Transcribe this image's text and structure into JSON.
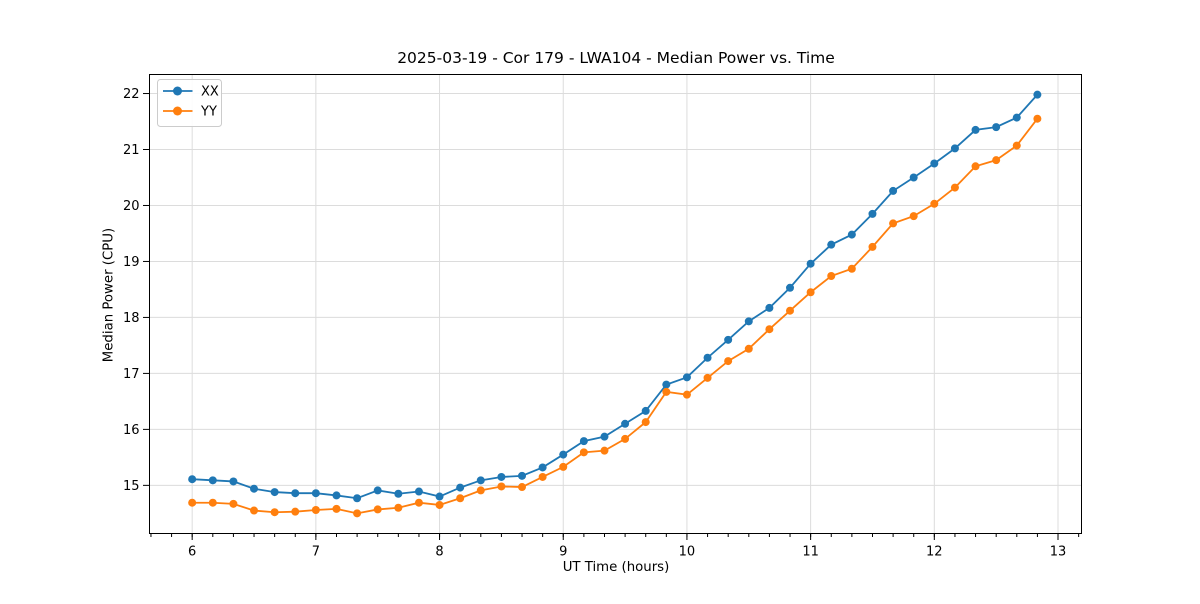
{
  "figure": {
    "background": "#ffffff"
  },
  "chart_data": {
    "type": "line",
    "title": "2025-03-19 - Cor 179 - LWA104 - Median Power vs. Time",
    "xlabel": "UT Time (hours)",
    "ylabel": "Median Power (CPU)",
    "x": [
      6.0,
      6.1667,
      6.3333,
      6.5,
      6.6667,
      6.8333,
      7.0,
      7.1667,
      7.3333,
      7.5,
      7.6667,
      7.8333,
      8.0,
      8.1667,
      8.3333,
      8.5,
      8.6667,
      8.8333,
      9.0,
      9.1667,
      9.3333,
      9.5,
      9.6667,
      9.8333,
      10.0,
      10.1667,
      10.3333,
      10.5,
      10.6667,
      10.8333,
      11.0,
      11.1667,
      11.3333,
      11.5,
      11.6667,
      11.8333,
      12.0,
      12.1667,
      12.3333,
      12.5,
      12.6667,
      12.8333
    ],
    "series": [
      {
        "name": "XX",
        "color": "#1f77b4",
        "values": [
          15.11,
          15.09,
          15.07,
          14.94,
          14.88,
          14.86,
          14.86,
          14.82,
          14.77,
          14.91,
          14.85,
          14.89,
          14.8,
          14.96,
          15.09,
          15.15,
          15.17,
          15.32,
          15.55,
          15.79,
          15.87,
          16.1,
          16.33,
          16.8,
          16.93,
          17.28,
          17.6,
          17.93,
          18.17,
          18.53,
          18.96,
          19.3,
          19.48,
          19.85,
          20.26,
          20.5,
          20.75,
          21.02,
          21.35,
          21.4,
          21.57,
          21.98
        ]
      },
      {
        "name": "YY",
        "color": "#ff7f0e",
        "values": [
          14.69,
          14.69,
          14.67,
          14.55,
          14.52,
          14.53,
          14.56,
          14.58,
          14.5,
          14.57,
          14.6,
          14.69,
          14.65,
          14.77,
          14.91,
          14.98,
          14.97,
          15.15,
          15.33,
          15.59,
          15.62,
          15.83,
          16.13,
          16.67,
          16.62,
          16.92,
          17.22,
          17.44,
          17.79,
          18.12,
          18.45,
          18.74,
          18.87,
          19.26,
          19.68,
          19.81,
          20.03,
          20.32,
          20.7,
          20.81,
          21.07,
          21.55
        ]
      }
    ],
    "xlim": [
      5.655,
      13.19
    ],
    "ylim": [
      14.14,
      22.34
    ],
    "x_ticks": [
      6,
      7,
      8,
      9,
      10,
      11,
      12,
      13
    ],
    "y_ticks": [
      15,
      16,
      17,
      18,
      19,
      20,
      21,
      22
    ],
    "x_minor_tick_step": 0.16667,
    "grid": true,
    "legend_position": "upper-left",
    "marker": "circle",
    "colors": {
      "grid": "#dcdcdc",
      "spine": "#000000",
      "tick": "#000000",
      "legend_border": "#cccccc",
      "legend_bg": "#ffffff"
    }
  }
}
